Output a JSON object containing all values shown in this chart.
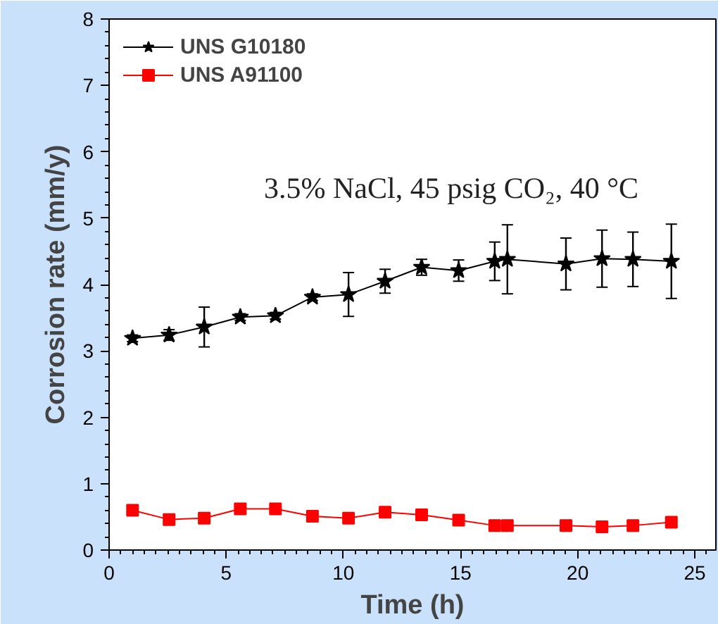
{
  "chart_data": {
    "type": "line",
    "xlabel": "Time (h)",
    "ylabel": "Corrosion rate (mm/y)",
    "annotations": [
      "3.5% NaCl, 45 psig CO₂, 40 °C"
    ],
    "x": [
      1.0,
      2.56,
      4.06,
      5.6,
      7.1,
      8.68,
      10.22,
      11.78,
      13.34,
      14.92,
      16.46,
      17.0,
      19.5,
      21.04,
      22.36,
      24.0
    ],
    "series": [
      {
        "name": "UNS G10180",
        "color": "#000000",
        "marker": "star",
        "values": [
          3.19,
          3.24,
          3.36,
          3.51,
          3.53,
          3.81,
          3.85,
          4.05,
          4.26,
          4.21,
          4.35,
          4.38,
          4.31,
          4.39,
          4.38,
          4.35
        ],
        "errors": [
          0.05,
          0.08,
          0.3,
          0.05,
          0.05,
          0.05,
          0.33,
          0.18,
          0.12,
          0.16,
          0.29,
          0.52,
          0.39,
          0.43,
          0.41,
          0.56
        ]
      },
      {
        "name": "UNS A91100",
        "color": "#ff0000",
        "marker": "square",
        "values": [
          0.6,
          0.46,
          0.48,
          0.62,
          0.62,
          0.51,
          0.48,
          0.57,
          0.53,
          0.45,
          0.37,
          0.37,
          0.37,
          0.35,
          0.37,
          0.42
        ]
      }
    ],
    "xlim": [
      0,
      25.9
    ],
    "ylim": [
      0,
      8
    ],
    "xticks": [
      0,
      5,
      10,
      15,
      20,
      25
    ],
    "yticks": [
      0,
      1,
      2,
      3,
      4,
      5,
      6,
      7,
      8
    ],
    "grid": false,
    "legend": "top left"
  }
}
